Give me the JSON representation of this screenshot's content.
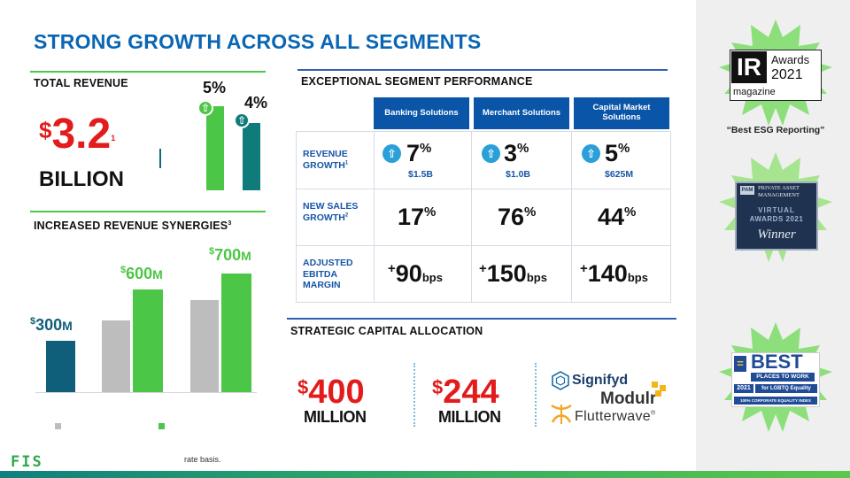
{
  "title": "STRONG GROWTH ACROSS ALL SEGMENTS",
  "total_revenue": {
    "heading": "TOTAL REVENUE",
    "currency": "$",
    "amount": "3.2",
    "footnote_mark": "1",
    "unit": "BILLION",
    "bars": [
      {
        "label": "5%",
        "value": 5,
        "color": "#4cc646"
      },
      {
        "label": "4%",
        "value": 4,
        "color": "#0f7b7b"
      }
    ]
  },
  "synergies": {
    "heading": "INCREASED REVENUE SYNERGIES",
    "footnote_mark": "3",
    "labels": [
      {
        "currency": "$",
        "amount": "300",
        "unit": "M",
        "color": "#0f5f7a"
      },
      {
        "currency": "$",
        "amount": "600",
        "unit": "M",
        "color": "#4cc646"
      },
      {
        "currency": "$",
        "amount": "700",
        "unit": "M",
        "color": "#4cc646"
      }
    ],
    "legend_colors": [
      "#bdbdbd",
      "#4cc646"
    ]
  },
  "segment_performance": {
    "heading": "EXCEPTIONAL SEGMENT PERFORMANCE",
    "columns": [
      "Banking Solutions",
      "Merchant Solutions",
      "Capital Market Solutions"
    ],
    "rows": [
      {
        "label": "REVENUE GROWTH",
        "footnote_mark": "1",
        "cells": [
          {
            "value": "7",
            "suffix": "%",
            "sub": "$1.5B"
          },
          {
            "value": "3",
            "suffix": "%",
            "sub": "$1.0B"
          },
          {
            "value": "5",
            "suffix": "%",
            "sub": "$625M"
          }
        ]
      },
      {
        "label": "NEW SALES GROWTH",
        "footnote_mark": "2",
        "cells": [
          {
            "value": "17",
            "suffix": "%"
          },
          {
            "value": "76",
            "suffix": "%"
          },
          {
            "value": "44",
            "suffix": "%"
          }
        ]
      },
      {
        "label": "ADJUSTED EBITDA MARGIN",
        "cells": [
          {
            "prefix": "+",
            "value": "90",
            "suffix": "bps"
          },
          {
            "prefix": "+",
            "value": "150",
            "suffix": "bps"
          },
          {
            "prefix": "+",
            "value": "140",
            "suffix": "bps"
          }
        ]
      }
    ]
  },
  "capital_allocation": {
    "heading": "STRATEGIC CAPITAL ALLOCATION",
    "items": [
      {
        "currency": "$",
        "amount": "400",
        "unit": "MILLION"
      },
      {
        "currency": "$",
        "amount": "244",
        "unit": "MILLION"
      }
    ],
    "logos": [
      "Signifyd",
      "Modulr",
      "Flutterwave"
    ],
    "flutterwave_reg": "®"
  },
  "awards": {
    "ir": {
      "logo": "IR",
      "line1": "Awards",
      "line2": "2021",
      "line3": "magazine",
      "quote": "“Best ESG Reporting”"
    },
    "pam": {
      "logo": "PAM",
      "line1": "PRIVATE ASSET",
      "line2": "MANAGEMENT",
      "line3": "VIRTUAL",
      "line4": "AWARDS 2021",
      "line5": "Winner"
    },
    "hrc": {
      "line1": "BEST",
      "line2": "PLACES TO WORK",
      "line3": "for LGBTQ Equality",
      "year": "2021",
      "line4": "100% CORPORATE EQUALITY INDEX"
    }
  },
  "footer": {
    "brand": "FIS",
    "footnote": "rate basis."
  }
}
